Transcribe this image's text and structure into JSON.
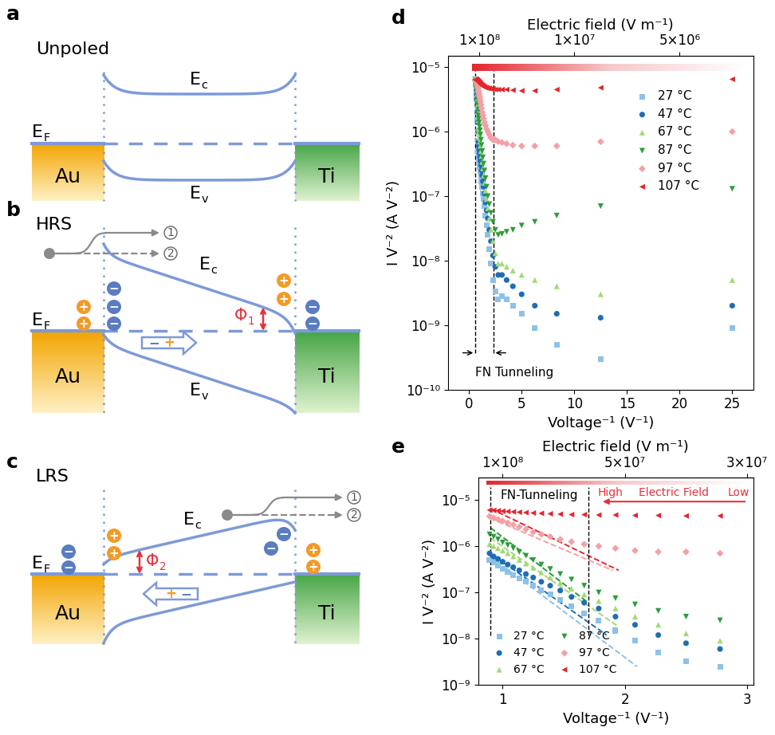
{
  "diagrams": {
    "a": {
      "panel": "a",
      "state": "Unpoled",
      "conduction_band": {
        "main": "E",
        "sub": "c"
      },
      "valence_band": {
        "main": "E",
        "sub": "v"
      },
      "fermi_level": {
        "main": "E",
        "sub": "F"
      },
      "left_metal": "Au",
      "right_metal": "Ti"
    },
    "b": {
      "panel": "b",
      "state": "HRS",
      "conduction_band": {
        "main": "E",
        "sub": "c"
      },
      "valence_band": {
        "main": "E",
        "sub": "v"
      },
      "fermi_level": {
        "main": "E",
        "sub": "F"
      },
      "left_metal": "Au",
      "right_metal": "Ti",
      "barrier": {
        "main": "Φ",
        "sub": "1"
      },
      "electron_paths": [
        "1",
        "2"
      ]
    },
    "c": {
      "panel": "c",
      "state": "LRS",
      "conduction_band": {
        "main": "E",
        "sub": "c"
      },
      "fermi_level": {
        "main": "E",
        "sub": "F"
      },
      "left_metal": "Au",
      "right_metal": "Ti",
      "barrier": {
        "main": "Φ",
        "sub": "2"
      },
      "electron_paths": [
        "1",
        "2"
      ]
    }
  },
  "charge_signs": {
    "positive": "+",
    "negative": "−"
  },
  "chart_data": [
    {
      "panel": "d",
      "type": "scatter",
      "log": "y",
      "grid": false,
      "legend": "upper right",
      "x_label": "Voltage⁻¹ (V⁻¹)",
      "y_label": "I V⁻² (A V⁻²)",
      "x2_label": "Electric field (V m⁻¹)",
      "xlim": [
        -2,
        27
      ],
      "xticks": [
        0,
        5,
        10,
        15,
        20,
        25
      ],
      "ylim": [
        1e-10,
        1.5e-05
      ],
      "yticks": [
        {
          "value": 1e-10,
          "label": "10⁻¹⁰"
        },
        {
          "value": 1e-09,
          "label": "10⁻⁹"
        },
        {
          "value": 1e-08,
          "label": "10⁻⁸"
        },
        {
          "value": 1e-07,
          "label": "10⁻⁷"
        },
        {
          "value": 1e-06,
          "label": "10⁻⁶"
        },
        {
          "value": 1e-05,
          "label": "10⁻⁵"
        }
      ],
      "x2ticks": [
        {
          "value": 1,
          "label": "1×10⁸"
        },
        {
          "value": 10,
          "label": "1×10⁷"
        },
        {
          "value": 20,
          "label": "5×10⁶"
        }
      ],
      "annotations": [
        {
          "text": "FN Tunneling",
          "x": [
            0.6,
            2.3
          ]
        }
      ],
      "x": [
        25,
        12.5,
        8.333,
        6.25,
        5,
        4.167,
        3.571,
        3.125,
        2.778,
        2.5,
        2.273,
        2.083,
        1.923,
        1.786,
        1.667,
        1.563,
        1.471,
        1.389,
        1.316,
        1.25,
        1.19,
        1.136,
        1.087,
        1.042,
        1,
        0.962,
        0.926,
        0.893,
        0.862,
        0.833,
        0.806,
        0.781,
        0.758,
        0.735,
        0.714,
        0.694,
        0.676,
        0.658,
        0.641,
        0.625,
        0.61,
        0.595
      ],
      "series": [
        {
          "name": "27 °C",
          "color": "#8ec1e8",
          "marker": "square",
          "values": [
            9e-10,
            3e-10,
            5e-10,
            9e-10,
            1.5e-09,
            2e-09,
            2.5e-09,
            2.8e-09,
            2.5e-09,
            3.3e-09,
            5e-09,
            9e-09,
            1.5e-08,
            2.5e-08,
            3.5e-08,
            5e-08,
            7e-08,
            9e-08,
            1.1e-07,
            1.4e-07,
            1.7e-07,
            2e-07,
            2.4e-07,
            2.8e-07,
            3.3e-07,
            3.8e-07,
            4.4e-07,
            5e-07,
            7e-07,
            1e-06,
            1.5e-06,
            2e-06,
            2.6e-06,
            3.2e-06,
            3.8e-06,
            4.4e-06,
            5e-06,
            5.4e-06,
            5.8e-06,
            6e-06,
            6.2e-06,
            6.3e-06
          ]
        },
        {
          "name": "47 °C",
          "color": "#1f6db5",
          "marker": "circle",
          "values": [
            2e-09,
            1.3e-09,
            1.5e-09,
            2e-09,
            3e-09,
            4e-09,
            5e-09,
            6e-09,
            6e-09,
            8e-09,
            1.2e-08,
            2e-08,
            3e-08,
            4.5e-08,
            6e-08,
            8e-08,
            1.1e-07,
            1.4e-07,
            1.7e-07,
            2.1e-07,
            2.5e-07,
            3e-07,
            3.5e-07,
            4e-07,
            4.6e-07,
            5.3e-07,
            6e-07,
            7e-07,
            1e-06,
            1.4e-06,
            2e-06,
            2.6e-06,
            3.2e-06,
            3.8e-06,
            4.4e-06,
            5e-06,
            5.4e-06,
            5.8e-06,
            6e-06,
            6.2e-06,
            6.3e-06,
            6.3e-06
          ]
        },
        {
          "name": "67 °C",
          "color": "#a3d977",
          "marker": "triangle_up",
          "values": [
            5e-09,
            3e-09,
            4e-09,
            5e-09,
            6e-09,
            7e-09,
            8e-09,
            9e-09,
            9e-09,
            1.3e-08,
            2e-08,
            3e-08,
            4.5e-08,
            6.5e-08,
            9e-08,
            1.2e-07,
            1.6e-07,
            2.1e-07,
            2.7e-07,
            3.4e-07,
            4.2e-07,
            5e-07,
            6e-07,
            7e-07,
            8e-07,
            9e-07,
            1e-06,
            1.1e-06,
            1.5e-06,
            2e-06,
            2.6e-06,
            3.2e-06,
            3.8e-06,
            4.4e-06,
            5e-06,
            5.4e-06,
            5.8e-06,
            6e-06,
            6.2e-06,
            6.3e-06,
            6.3e-06,
            6.4e-06
          ]
        },
        {
          "name": "87 °C",
          "color": "#2a9d3a",
          "marker": "triangle_down",
          "values": [
            1.3e-07,
            7e-08,
            5e-08,
            4e-08,
            3.5e-08,
            3e-08,
            2.8e-08,
            2.6e-08,
            2.5e-08,
            3e-08,
            4e-08,
            5.5e-08,
            7.5e-08,
            1e-07,
            1.4e-07,
            1.9e-07,
            2.5e-07,
            3.2e-07,
            4e-07,
            5e-07,
            6.2e-07,
            7.5e-07,
            9e-07,
            1.05e-06,
            1.2e-06,
            1.4e-06,
            1.6e-06,
            1.8e-06,
            2.2e-06,
            2.7e-06,
            3.2e-06,
            3.7e-06,
            4.2e-06,
            4.7e-06,
            5.1e-06,
            5.5e-06,
            5.8e-06,
            6e-06,
            6.2e-06,
            6.3e-06,
            6.4e-06,
            6.4e-06
          ]
        },
        {
          "name": "97 °C",
          "color": "#f4a0a6",
          "marker": "diamond",
          "values": [
            1e-06,
            7e-07,
            6e-07,
            6e-07,
            6e-07,
            6.2e-07,
            6.5e-07,
            6.8e-07,
            7e-07,
            7.5e-07,
            7.5e-07,
            8e-07,
            9e-07,
            1e-06,
            1.1e-06,
            1.25e-06,
            1.4e-06,
            1.6e-06,
            1.8e-06,
            2e-06,
            2.3e-06,
            2.6e-06,
            2.9e-06,
            3.2e-06,
            3.5e-06,
            3.8e-06,
            4.1e-06,
            4.4e-06,
            4.8e-06,
            5.1e-06,
            5.4e-06,
            5.6e-06,
            5.8e-06,
            6e-06,
            6.1e-06,
            6.2e-06,
            6.3e-06,
            6.3e-06,
            6.4e-06,
            6.4e-06,
            6.4e-06,
            6.4e-06
          ]
        },
        {
          "name": "107 °C",
          "color": "#e3262d",
          "marker": "triangle_left",
          "values": [
            6.5e-06,
            4.8e-06,
            4.5e-06,
            4.3e-06,
            4.3e-06,
            4.4e-06,
            4.5e-06,
            4.5e-06,
            4.5e-06,
            4.5e-06,
            4.6e-06,
            4.6e-06,
            4.7e-06,
            4.7e-06,
            4.8e-06,
            4.8e-06,
            4.9e-06,
            5e-06,
            5.1e-06,
            5.2e-06,
            5.3e-06,
            5.4e-06,
            5.5e-06,
            5.6e-06,
            5.7e-06,
            5.8e-06,
            5.9e-06,
            6e-06,
            6e-06,
            6.1e-06,
            6.1e-06,
            6.2e-06,
            6.2e-06,
            6.3e-06,
            6.3e-06,
            6.4e-06,
            6.4e-06,
            6.4e-06,
            6.4e-06,
            6.4e-06,
            6.4e-06,
            6.4e-06
          ]
        }
      ]
    },
    {
      "panel": "e",
      "type": "scatter",
      "log": "y",
      "grid": false,
      "legend": "lower left",
      "x_label": "Voltage⁻¹ (V⁻¹)",
      "y_label": "I V⁻² (A V⁻²)",
      "x2_label": "Electric field (V m⁻¹)",
      "xlim": [
        0.8,
        3.05
      ],
      "xticks": [
        1,
        2,
        3
      ],
      "ylim": [
        1e-09,
        3e-05
      ],
      "yticks": [
        {
          "value": 1e-09,
          "label": "10⁻⁹"
        },
        {
          "value": 1e-08,
          "label": "10⁻⁸"
        },
        {
          "value": 1e-07,
          "label": "10⁻⁷"
        },
        {
          "value": 1e-06,
          "label": "10⁻⁶"
        },
        {
          "value": 1e-05,
          "label": "10⁻⁵"
        }
      ],
      "x2ticks": [
        {
          "value": 1,
          "label": "1×10⁸"
        },
        {
          "value": 2,
          "label": "5×10⁷"
        },
        {
          "value": 3,
          "label": "3×10⁷"
        }
      ],
      "annotations": [
        {
          "text": "FN-Tunneling",
          "x": [
            0.9,
            1.7
          ]
        }
      ],
      "field_arrow": {
        "high": "High",
        "label": "Electric Field",
        "low": "Low"
      },
      "x": [
        2.778,
        2.5,
        2.273,
        2.083,
        1.923,
        1.786,
        1.667,
        1.563,
        1.471,
        1.389,
        1.316,
        1.25,
        1.19,
        1.136,
        1.087,
        1.042,
        1,
        0.962,
        0.926,
        0.893
      ],
      "series": [
        {
          "name": "27 °C",
          "color": "#8ec1e8",
          "marker": "square",
          "values": [
            2.5e-09,
            3.3e-09,
            5e-09,
            9e-09,
            1.5e-08,
            2.5e-08,
            3.5e-08,
            5e-08,
            7e-08,
            9e-08,
            1.1e-07,
            1.4e-07,
            1.7e-07,
            2e-07,
            2.4e-07,
            2.8e-07,
            3.3e-07,
            3.8e-07,
            4.4e-07,
            5e-07
          ],
          "fit": {
            "x": [
              0.9,
              2.1
            ],
            "values": [
              6e-07,
              2.5e-09
            ]
          }
        },
        {
          "name": "47 °C",
          "color": "#1f6db5",
          "marker": "circle",
          "values": [
            6e-09,
            8e-09,
            1.2e-08,
            2e-08,
            3e-08,
            4.5e-08,
            6e-08,
            8e-08,
            1.1e-07,
            1.4e-07,
            1.7e-07,
            2.1e-07,
            2.5e-07,
            3e-07,
            3.5e-07,
            4e-07,
            4.6e-07,
            5.3e-07,
            6e-07,
            7e-07
          ],
          "fit": {
            "x": [
              0.9,
              1.85
            ],
            "values": [
              7e-07,
              1.2e-08
            ]
          }
        },
        {
          "name": "67 °C",
          "color": "#a3d977",
          "marker": "triangle_up",
          "values": [
            9e-09,
            1.3e-08,
            2e-08,
            3e-08,
            4.5e-08,
            6.5e-08,
            9e-08,
            1.2e-07,
            1.6e-07,
            2.1e-07,
            2.7e-07,
            3.4e-07,
            4.2e-07,
            5e-07,
            6e-07,
            7e-07,
            8e-07,
            9e-07,
            1e-06,
            1.1e-06
          ],
          "fit": {
            "x": [
              0.9,
              1.95
            ],
            "values": [
              1.5e-06,
              1.8e-08
            ]
          }
        },
        {
          "name": "87 °C",
          "color": "#2a9d3a",
          "marker": "triangle_down",
          "values": [
            2.5e-08,
            3e-08,
            4e-08,
            5.5e-08,
            7.5e-08,
            1e-07,
            1.4e-07,
            1.9e-07,
            2.5e-07,
            3.2e-07,
            4e-07,
            5e-07,
            6.2e-07,
            7.5e-07,
            9e-07,
            1.05e-06,
            1.2e-06,
            1.4e-06,
            1.6e-06,
            1.8e-06
          ],
          "fit": {
            "x": [
              0.9,
              1.7
            ],
            "values": [
              2.5e-06,
              6e-08
            ]
          }
        },
        {
          "name": "97 °C",
          "color": "#f4a0a6",
          "marker": "diamond",
          "values": [
            7e-07,
            7.5e-07,
            7.5e-07,
            8e-07,
            9e-07,
            1e-06,
            1.1e-06,
            1.25e-06,
            1.4e-06,
            1.6e-06,
            1.8e-06,
            2e-06,
            2.3e-06,
            2.6e-06,
            2.9e-06,
            3.2e-06,
            3.5e-06,
            3.8e-06,
            4.1e-06,
            4.4e-06
          ],
          "fit": {
            "x": [
              0.9,
              1.9
            ],
            "values": [
              4e-06,
              3e-07
            ]
          }
        },
        {
          "name": "107 °C",
          "color": "#e3262d",
          "marker": "triangle_left",
          "values": [
            4.5e-06,
            4.5e-06,
            4.6e-06,
            4.6e-06,
            4.7e-06,
            4.7e-06,
            4.8e-06,
            4.8e-06,
            4.9e-06,
            5e-06,
            5.1e-06,
            5.2e-06,
            5.3e-06,
            5.4e-06,
            5.5e-06,
            5.6e-06,
            5.7e-06,
            5.8e-06,
            5.9e-06,
            6e-06
          ],
          "fit": {
            "x": [
              0.9,
              1.95
            ],
            "values": [
              6.5e-06,
              3e-07
            ]
          }
        }
      ]
    }
  ]
}
